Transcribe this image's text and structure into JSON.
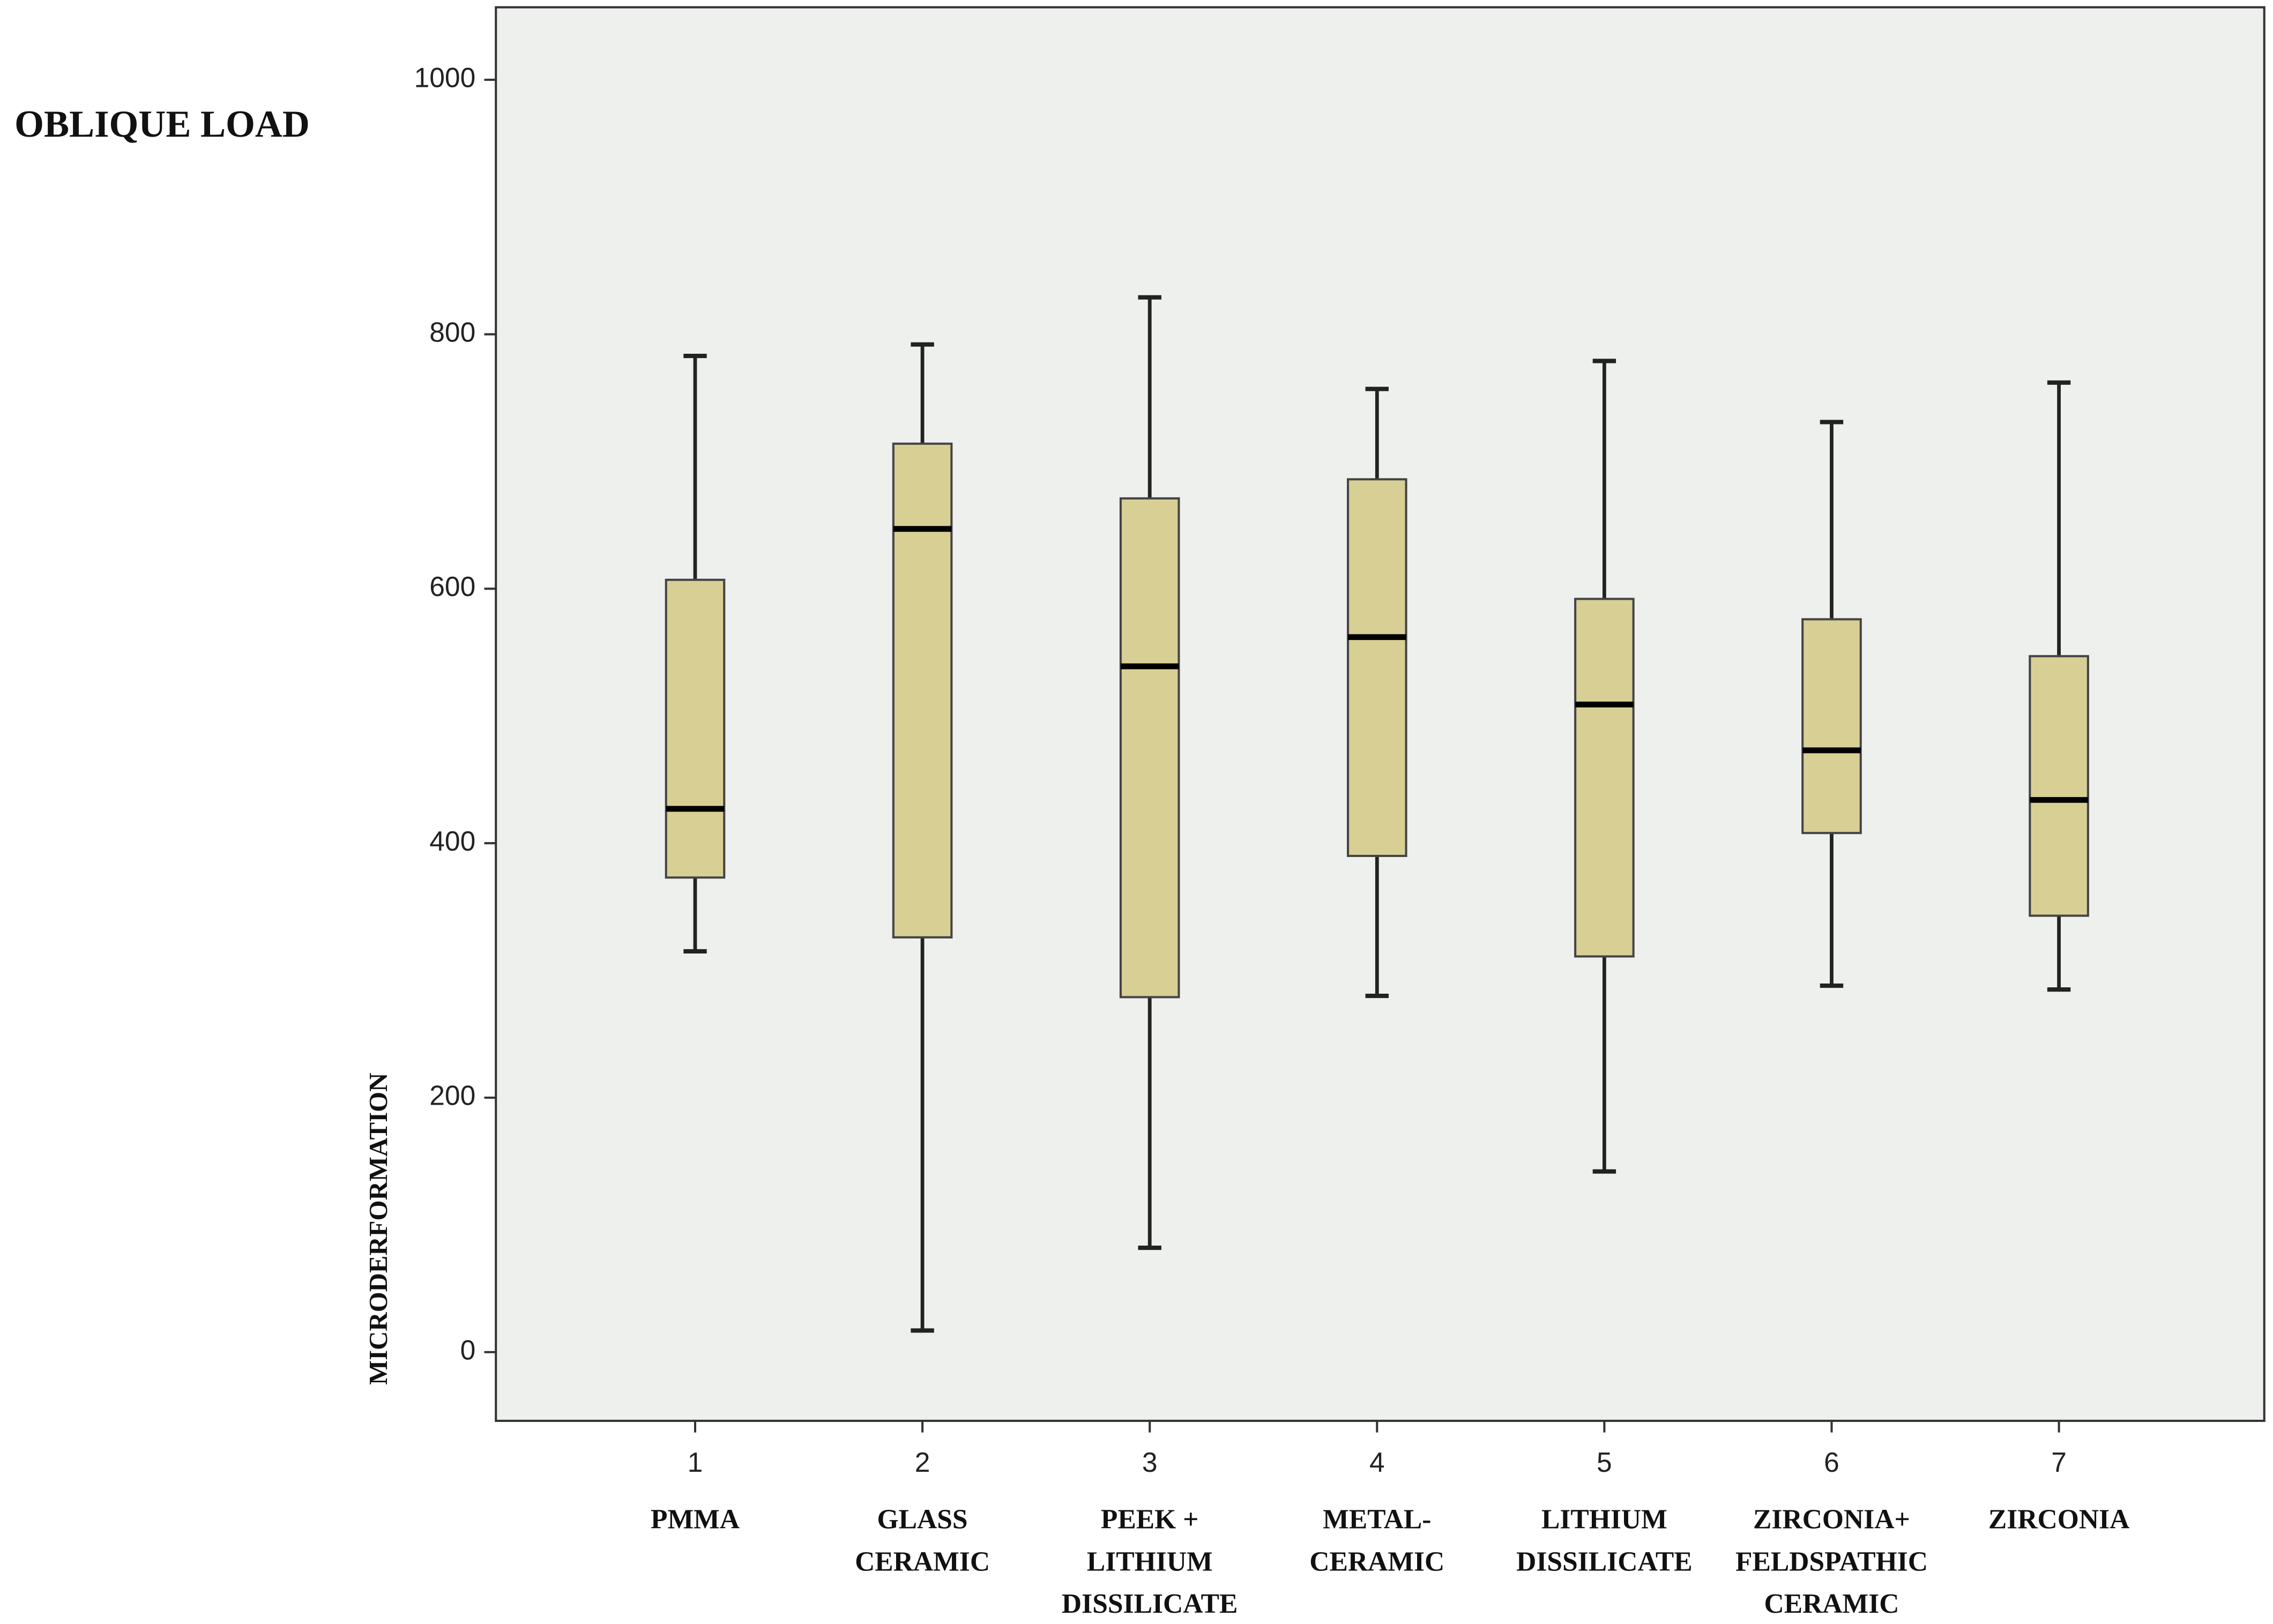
{
  "chart_data": {
    "type": "box",
    "title": "OBLIQUE LOAD",
    "y_label": "MICRODERFORMATION",
    "categories": [
      "1",
      "2",
      "3",
      "4",
      "5",
      "6",
      "7"
    ],
    "group_labels": [
      [
        "PMMA"
      ],
      [
        "GLASS",
        "CERAMIC"
      ],
      [
        "PEEK +",
        "LITHIUM",
        "DISSILICATE"
      ],
      [
        "METAL-",
        "CERAMIC"
      ],
      [
        "LITHIUM",
        "DISSILICATE"
      ],
      [
        "ZIRCONIA+",
        "FELDSPATHIC",
        "CERAMIC"
      ],
      [
        "ZIRCONIA"
      ]
    ],
    "min": [
      315,
      17,
      82,
      280,
      142,
      288,
      285
    ],
    "q1": [
      373,
      326,
      279,
      390,
      311,
      408,
      343
    ],
    "median": [
      427,
      647,
      539,
      562,
      509,
      473,
      434
    ],
    "q3": [
      607,
      714,
      671,
      686,
      592,
      576,
      547
    ],
    "max": [
      783,
      792,
      829,
      757,
      779,
      731,
      762
    ],
    "color": "#d8cf95",
    "ylim": [
      -54,
      1057
    ],
    "yticks": [
      0,
      200,
      400,
      600,
      800,
      1000
    ]
  }
}
